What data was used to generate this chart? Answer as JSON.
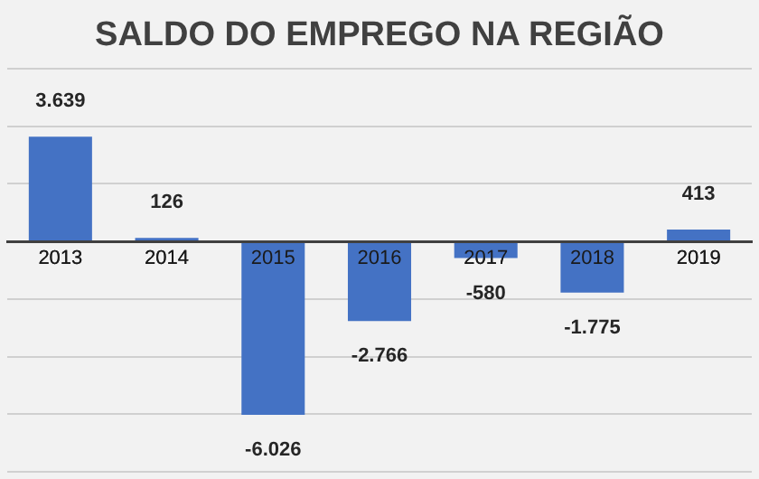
{
  "chart_data": {
    "type": "bar",
    "title": "SALDO DO EMPREGO NA REGIÃO",
    "categories": [
      "2013",
      "2014",
      "2015",
      "2016",
      "2017",
      "2018",
      "2019"
    ],
    "values": [
      3639,
      126,
      -6026,
      -2766,
      -580,
      -1775,
      413
    ],
    "value_labels": [
      "3.639",
      "126",
      "-6.026",
      "-2.766",
      "-580",
      "-1.775",
      "413"
    ],
    "color": "#4472c4",
    "grid": "y",
    "tick_labels": "x",
    "legend": false
  }
}
